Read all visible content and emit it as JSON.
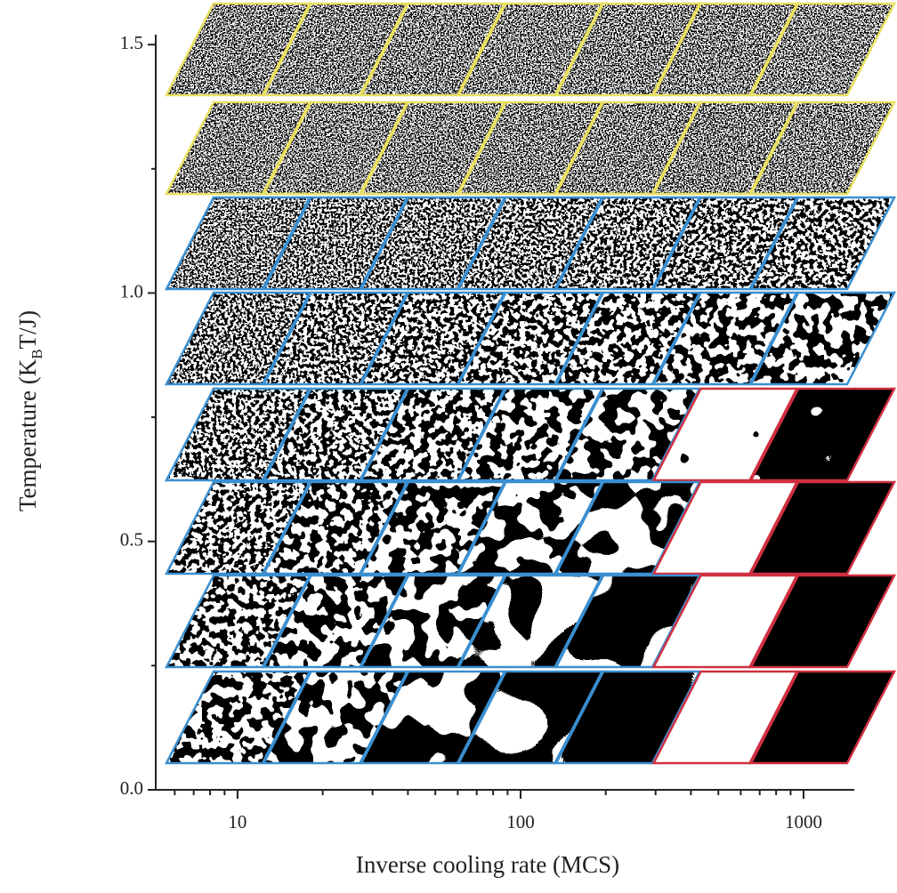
{
  "chart_data": {
    "type": "panel-grid",
    "ylabel_parts": [
      "Temperature (K",
      "B",
      "T/J)"
    ],
    "xlabel": "Inverse cooling rate (MCS)",
    "xscale": "log",
    "xlim": [
      5.14,
      1511
    ],
    "xticks": [
      10,
      100,
      1000
    ],
    "xminorticks": [
      6,
      7,
      8,
      9,
      20,
      30,
      40,
      50,
      60,
      70,
      80,
      90,
      200,
      300,
      400,
      500,
      600,
      700,
      800,
      900
    ],
    "ylim": [
      0,
      1.52
    ],
    "yticks": [
      {
        "value": 0,
        "label": "0.0"
      },
      {
        "value": 0.5,
        "label": "0.5"
      },
      {
        "value": 1,
        "label": "1.0"
      },
      {
        "value": 1.5,
        "label": "1.5"
      }
    ],
    "yminorticks": [
      0.25,
      0.75,
      1.25
    ]
  }
}
